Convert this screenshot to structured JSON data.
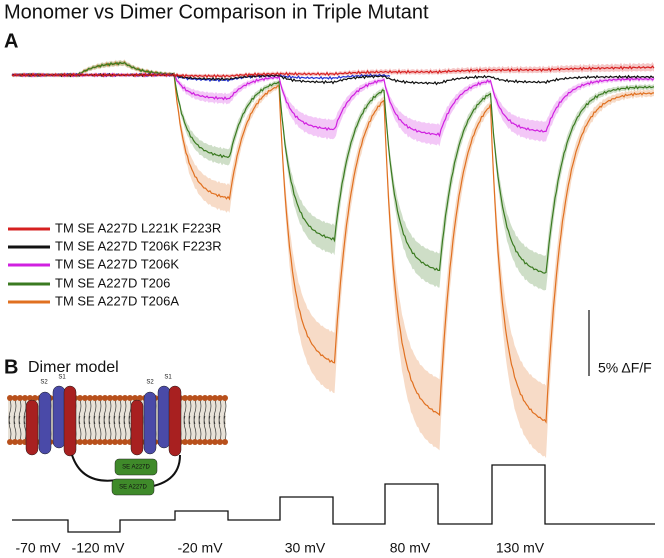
{
  "title": "Monomer vs Dimer Comparison in Triple Mutant",
  "panels": [
    {
      "label": "A"
    },
    {
      "label": "B",
      "subtitle": "Dimer model"
    }
  ],
  "legend": [
    "TM SE A227D L221K F223R",
    "TM SE A227D T206K F223R",
    "TM SE A227D T206K",
    "TM SE A227D T206",
    "TM SE A227D T206A"
  ],
  "scale_bar": "5% ΔF/F",
  "voltage_steps": [
    "-70 mV",
    "-120 mV",
    "-20 mV",
    "30 mV",
    "80 mV",
    "130 mV"
  ],
  "model_labels": [
    "S2",
    "S1",
    "S2",
    "S1",
    "SE A227D",
    "SE A227D"
  ]
}
